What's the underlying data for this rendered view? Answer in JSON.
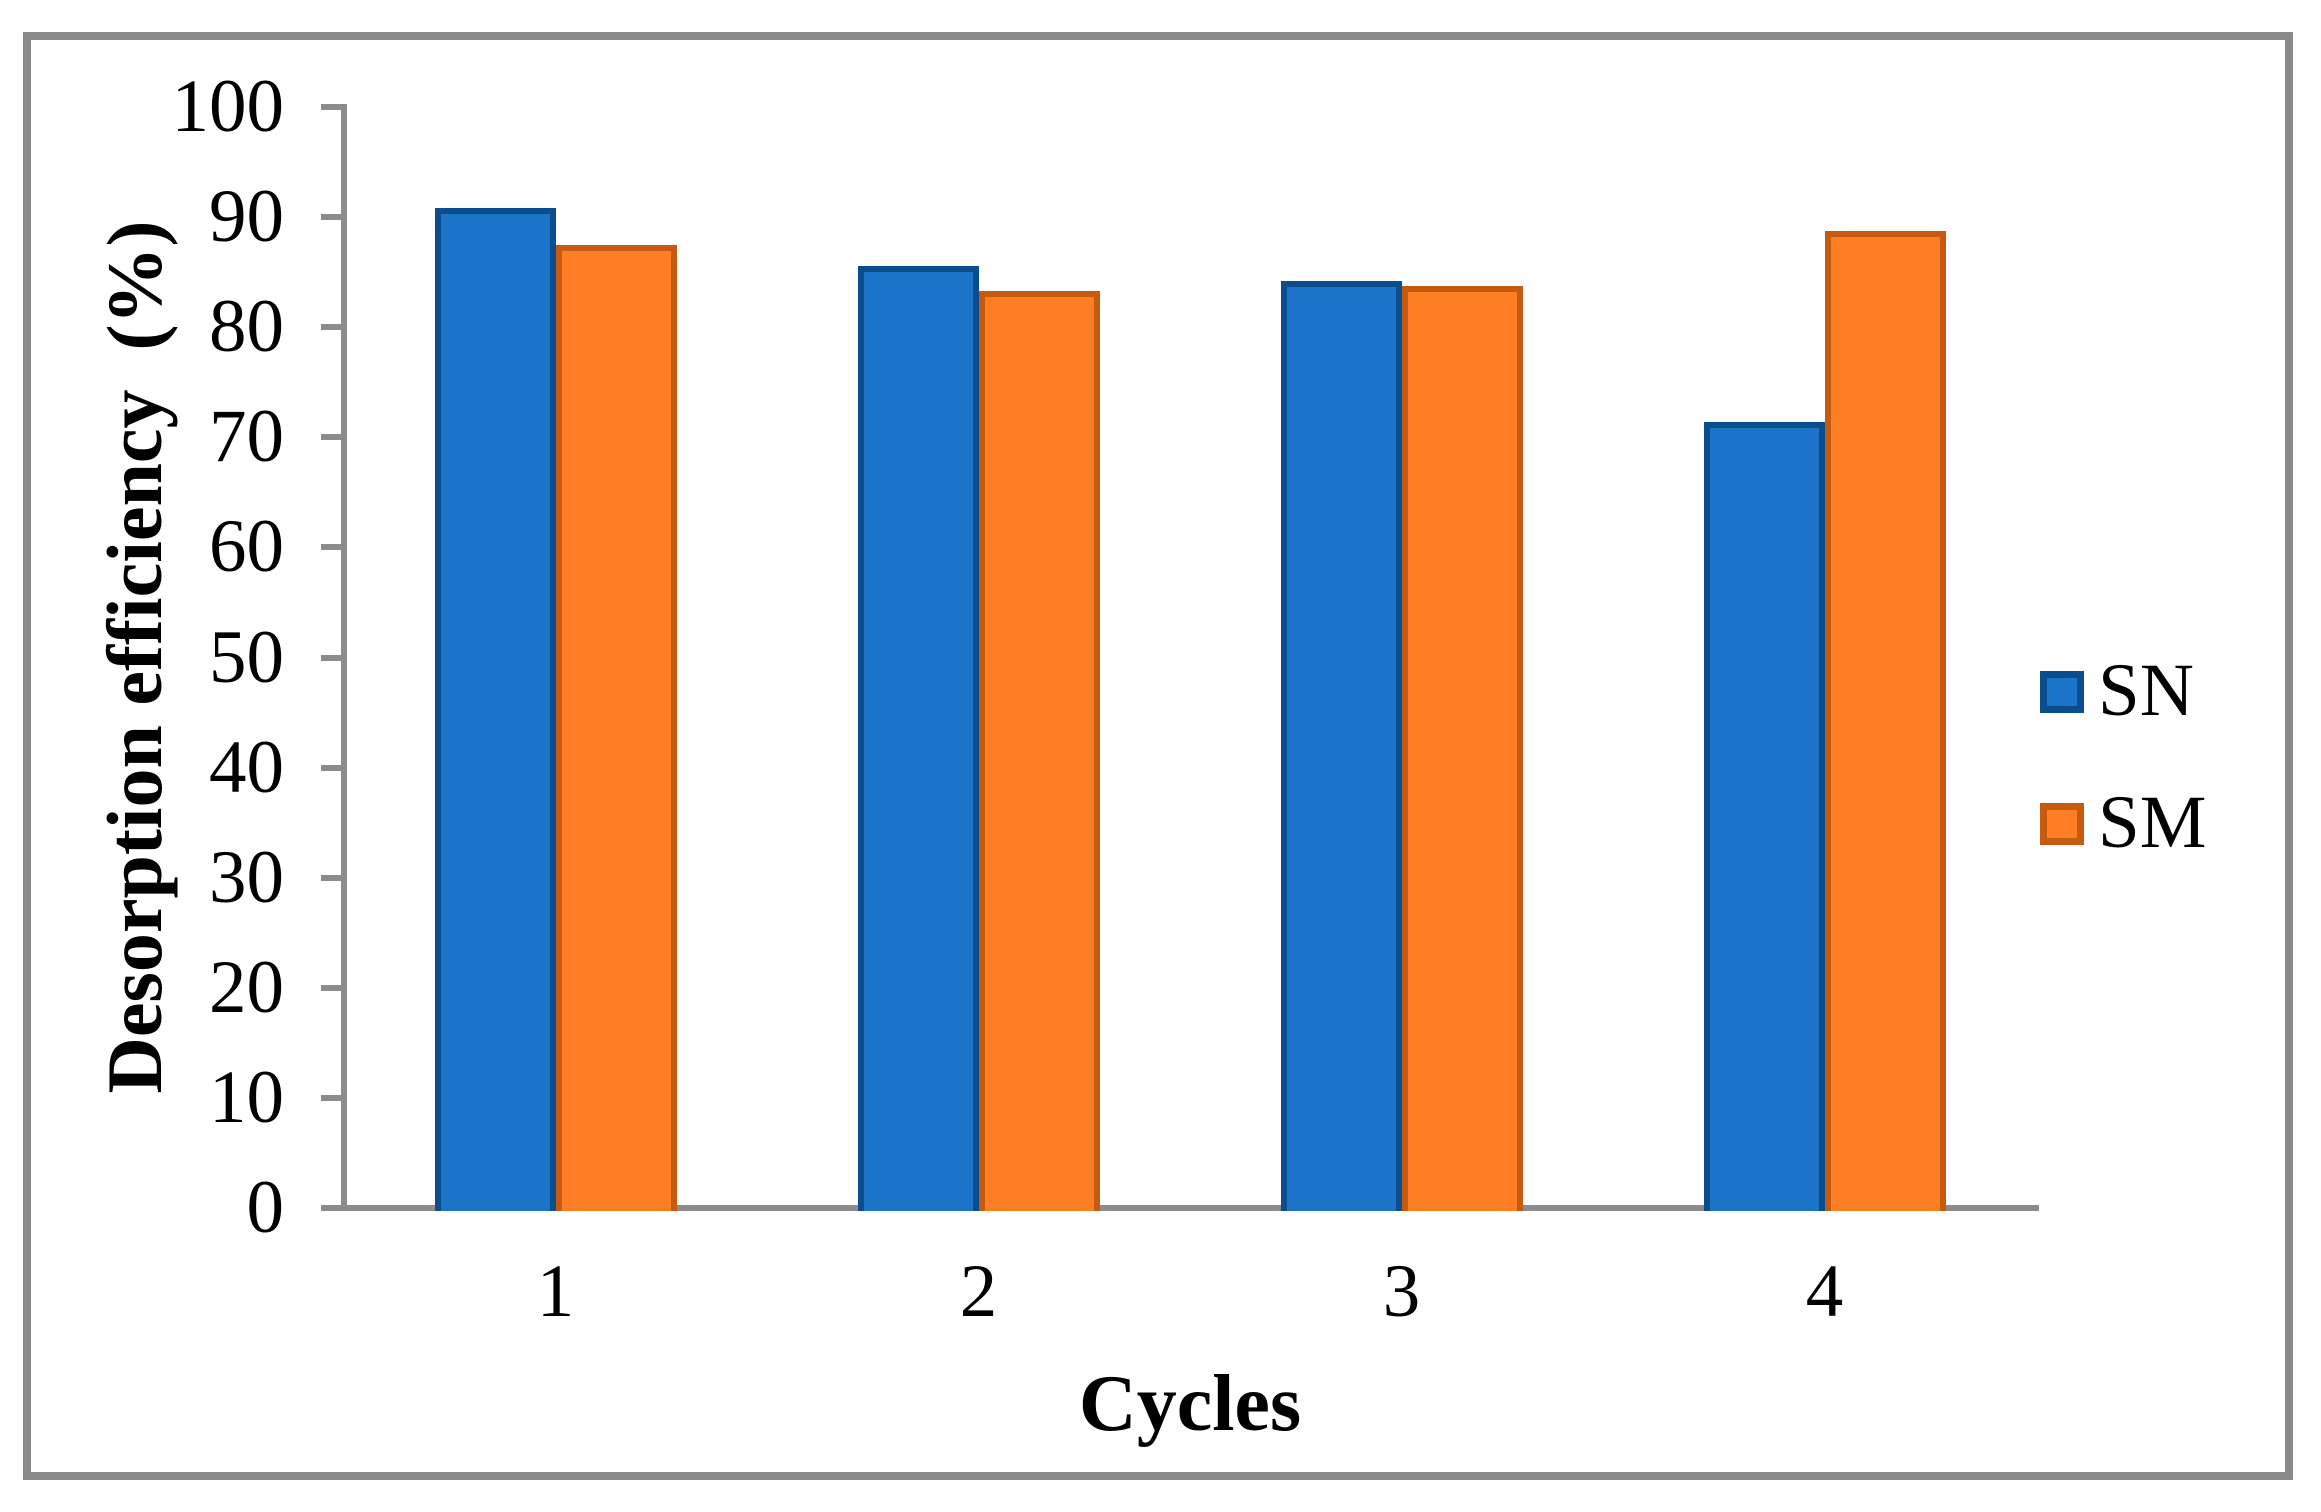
{
  "figure": {
    "background_color": "#FFFFFF",
    "frame_color": "#8A8A8A"
  },
  "chart_data": {
    "type": "bar",
    "title": "",
    "categories": [
      "1",
      "2",
      "3",
      "4"
    ],
    "series": [
      {
        "name": "SN",
        "values": [
          90.8,
          85.6,
          84.2,
          71.4
        ],
        "fill": "#1B74C8",
        "border": "#0B4E8E"
      },
      {
        "name": "SM",
        "values": [
          87.5,
          83.3,
          83.7,
          88.7
        ],
        "fill": "#FD7E23",
        "border": "#C65A11"
      }
    ],
    "xlabel": "Cycles",
    "ylabel": "Desorption efficiency  (%)",
    "ylim": [
      0,
      100
    ],
    "y_ticks": [
      0,
      10,
      20,
      30,
      40,
      50,
      60,
      70,
      80,
      90,
      100
    ],
    "grid": false,
    "legend_position": "right-middle",
    "legend_entries": [
      "SN",
      "SM"
    ],
    "axis_color": "#8C8C8C"
  }
}
